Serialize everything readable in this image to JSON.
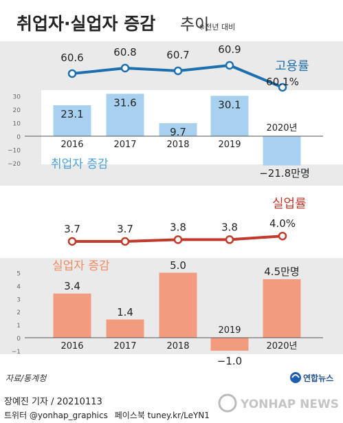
{
  "header": {
    "title_main": "취업자·실업자 증감",
    "title_sub": "추이",
    "note": "※전년 대비"
  },
  "colors": {
    "employment_rate_line": "#1d6fae",
    "employment_bar": "#a8d0ef",
    "unemployment_rate_line": "#c0392b",
    "unemployment_bar": "#f39b7f",
    "employment_label": "#4a9fd8",
    "unemployment_label": "#f08a62"
  },
  "chart_data": [
    {
      "type": "line",
      "name": "고용률",
      "categories": [
        "2016",
        "2017",
        "2018",
        "2019",
        "2020년"
      ],
      "values": [
        60.6,
        60.8,
        60.7,
        60.9,
        60.1
      ],
      "value_labels": [
        "60.6",
        "60.8",
        "60.7",
        "60.9",
        "60.1%"
      ],
      "series_label": "고용률"
    },
    {
      "type": "bar",
      "name": "취업자 증감",
      "categories": [
        "2016",
        "2017",
        "2018",
        "2019",
        "2020년"
      ],
      "values": [
        23.1,
        31.6,
        9.7,
        30.1,
        -21.8
      ],
      "value_labels": [
        "23.1",
        "31.6",
        "9.7",
        "30.1",
        "−21.8만명"
      ],
      "series_label": "취업자 증감",
      "ylim": [
        -25,
        33
      ],
      "yticks": [
        "30",
        "20",
        "10",
        "0",
        "−10",
        "−20"
      ],
      "ytick_values": [
        30,
        20,
        10,
        0,
        -10,
        -20
      ]
    },
    {
      "type": "line",
      "name": "실업률",
      "categories": [
        "2016",
        "2017",
        "2018",
        "2019",
        "2020년"
      ],
      "values": [
        3.7,
        3.7,
        3.8,
        3.8,
        4.0
      ],
      "value_labels": [
        "3.7",
        "3.7",
        "3.8",
        "3.8",
        "4.0%"
      ],
      "series_label": "실업률"
    },
    {
      "type": "bar",
      "name": "실업자 증감",
      "categories": [
        "2016",
        "2017",
        "2018",
        "2019",
        "2020년"
      ],
      "values": [
        3.4,
        1.4,
        5.0,
        -1.0,
        4.5
      ],
      "value_labels": [
        "3.4",
        "1.4",
        "5.0",
        "−1.0",
        "4.5만명"
      ],
      "series_label": "실업자 증감",
      "ylim": [
        -1.2,
        5.3
      ],
      "yticks": [
        "5",
        "4",
        "3",
        "2",
        "1",
        "0",
        "−1"
      ],
      "ytick_values": [
        5,
        4,
        3,
        2,
        1,
        0,
        -1
      ]
    }
  ],
  "source": "자료/통계청",
  "logo_text": "연합뉴스",
  "credit": {
    "reporter": "장예진 기자",
    "date": "20210113",
    "twitter": "트위터 @yonhap_graphics",
    "facebook": "페이스북 tuney.kr/LeYN1"
  },
  "watermark": "YONHAP NEWS"
}
